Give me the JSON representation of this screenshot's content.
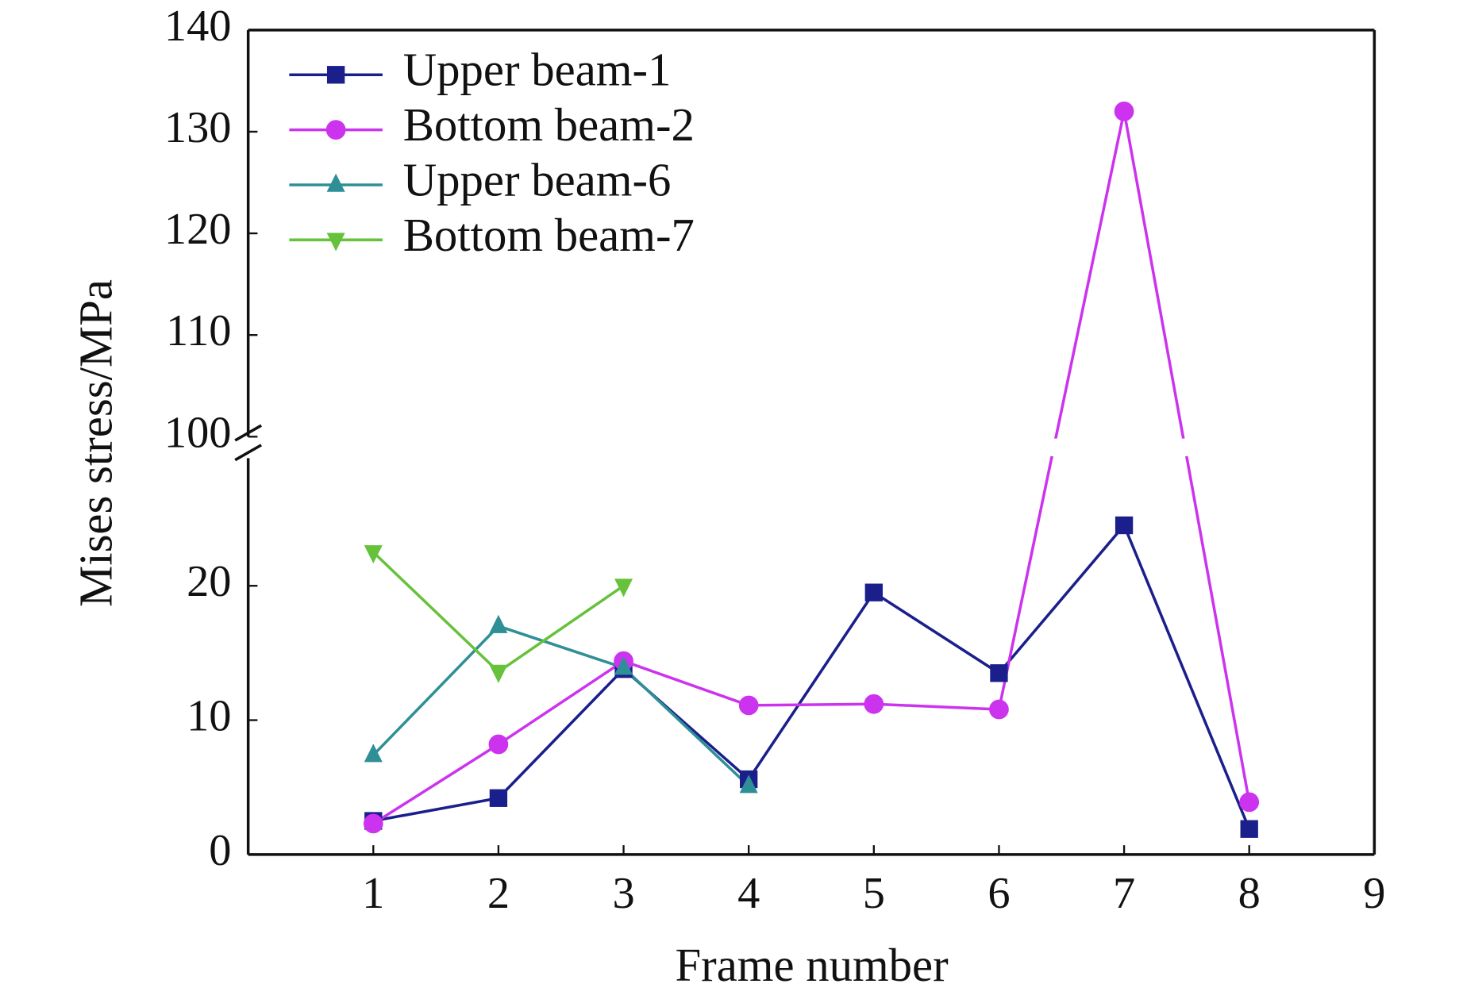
{
  "chart_data": {
    "type": "line",
    "x_label": "Frame number",
    "y_label": "Mises stress/MPa",
    "x": [
      1,
      2,
      3,
      4,
      5,
      6,
      7,
      8
    ],
    "xlim": [
      0,
      9
    ],
    "xticks": [
      1,
      2,
      3,
      4,
      5,
      6,
      7,
      8,
      9
    ],
    "y_segments": [
      {
        "ylim": [
          0,
          29.5
        ],
        "yticks": [
          0,
          10,
          20
        ]
      },
      {
        "ylim": [
          100,
          140
        ],
        "yticks": [
          100,
          110,
          120,
          130,
          140
        ]
      }
    ],
    "legend": "upper left",
    "series": [
      {
        "name": "Upper beam-1",
        "color": "#1a1f8c",
        "marker": "square",
        "values": [
          2.5,
          4.2,
          13.8,
          5.6,
          19.5,
          13.5,
          24.5,
          1.9
        ]
      },
      {
        "name": "Bottom beam-2",
        "color": "#cc33ee",
        "marker": "circle",
        "values": [
          2.3,
          8.2,
          14.4,
          11.1,
          11.2,
          10.8,
          132,
          3.9
        ]
      },
      {
        "name": "Upper beam-6",
        "color": "#2f8f96",
        "marker": "triangle-up",
        "values": [
          7.4,
          17,
          13.9,
          5.1,
          null,
          null,
          null,
          null
        ]
      },
      {
        "name": "Bottom beam-7",
        "color": "#66c23a",
        "marker": "triangle-down",
        "values": [
          22.5,
          13.6,
          20,
          null,
          null,
          null,
          null,
          null
        ]
      }
    ]
  }
}
